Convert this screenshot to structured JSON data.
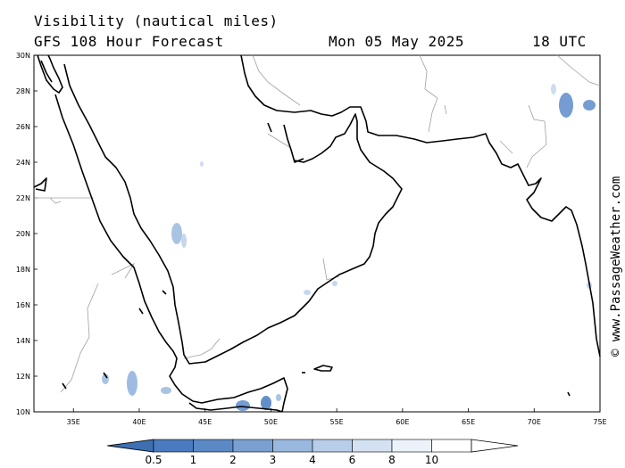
{
  "header": {
    "variable": "Visibility (nautical miles)",
    "model": "GFS 108 Hour Forecast",
    "date": "Mon 05 May 2025",
    "time": "18 UTC"
  },
  "credit": "© www.PassageWeather.com",
  "map": {
    "lon_range": [
      32,
      75
    ],
    "lat_range": [
      10,
      30
    ],
    "lat_labels": [
      "30N",
      "28N",
      "26N",
      "24N",
      "22N",
      "20N",
      "18N",
      "16N",
      "14N",
      "12N",
      "10N"
    ],
    "lon_labels": [
      "35E",
      "40E",
      "45E",
      "50E",
      "55E",
      "60E",
      "65E",
      "70E",
      "75E"
    ]
  },
  "colorbar": {
    "labels": [
      "0.5",
      "1",
      "2",
      "3",
      "4",
      "6",
      "8",
      "10"
    ],
    "colors": [
      "#4a7bbf",
      "#5b89c6",
      "#7aa0d2",
      "#99b8df",
      "#b7cdea",
      "#d3e1f2",
      "#ecf2fa",
      "#ffffff"
    ]
  }
}
